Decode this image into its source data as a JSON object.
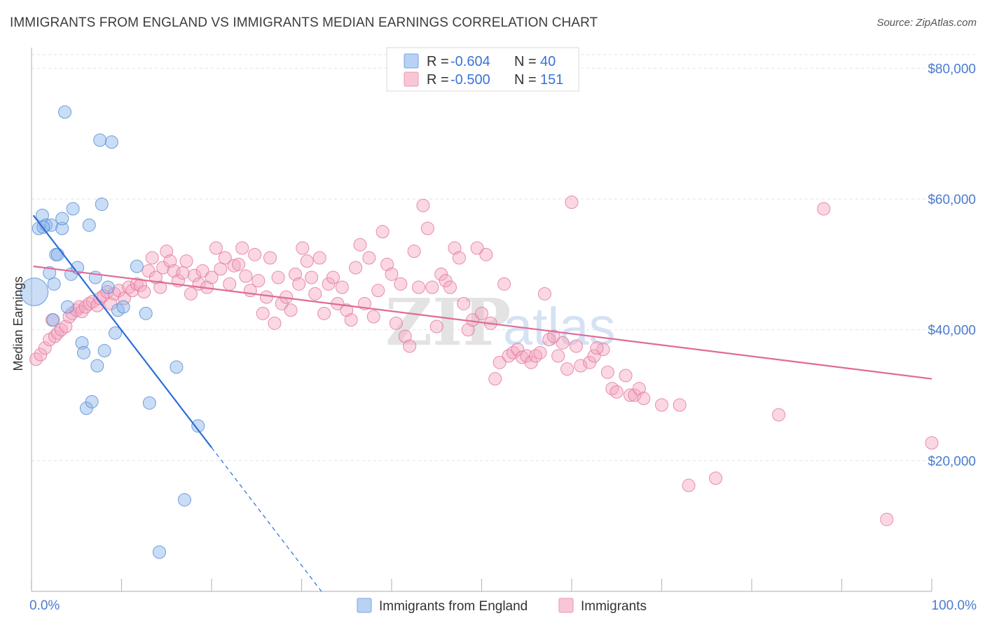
{
  "title": "IMMIGRANTS FROM ENGLAND VS IMMIGRANTS MEDIAN EARNINGS CORRELATION CHART",
  "source": "Source: ZipAtlas.com",
  "chart_data": {
    "type": "scatter",
    "ylabel": "Median Earnings",
    "xlim": [
      0,
      100
    ],
    "ylim": [
      0,
      84000
    ],
    "x_tick_labels": [
      "0.0%",
      "100.0%"
    ],
    "y_ticks": [
      20000,
      40000,
      60000,
      80000
    ],
    "y_tick_labels": [
      "$20,000",
      "$40,000",
      "$60,000",
      "$80,000"
    ],
    "watermark": [
      "ZIP",
      "atlas"
    ],
    "legend": [
      {
        "r_label": "R = ",
        "r_value": "-0.604",
        "n_label": "N = ",
        "n_value": "40"
      },
      {
        "r_label": "R = ",
        "r_value": "-0.500",
        "n_label": "N = ",
        "n_value": "151"
      }
    ],
    "series": [
      {
        "name": "Immigrants from England",
        "color": "#8ab4ec",
        "stroke": "#5b8fd6",
        "line_color": "#2b6fd6",
        "trend": {
          "x0": 0.2,
          "y0": 57500,
          "x1": 20,
          "y1": 22000,
          "dash_to_x": 32.2,
          "dash_to_y": 0
        },
        "points": [
          [
            0.3,
            45800,
            2.2
          ],
          [
            0.8,
            55500,
            1
          ],
          [
            1.2,
            57500,
            1
          ],
          [
            1.6,
            56000,
            1
          ],
          [
            2.2,
            56000,
            1
          ],
          [
            2.7,
            51500,
            1
          ],
          [
            2.4,
            41500,
            1
          ],
          [
            2.5,
            47000,
            1
          ],
          [
            2.9,
            51500,
            1
          ],
          [
            3.4,
            55500,
            1
          ],
          [
            3.4,
            57000,
            1
          ],
          [
            4.0,
            43500,
            1
          ],
          [
            4.4,
            48500,
            1
          ],
          [
            4.6,
            58500,
            1
          ],
          [
            5.1,
            49500,
            1
          ],
          [
            5.6,
            38000,
            1
          ],
          [
            5.8,
            36500,
            1
          ],
          [
            6.1,
            28000,
            1
          ],
          [
            6.4,
            56000,
            1
          ],
          [
            6.7,
            29000,
            1
          ],
          [
            7.1,
            48000,
            1
          ],
          [
            7.3,
            34500,
            1
          ],
          [
            7.6,
            69000,
            1
          ],
          [
            7.8,
            59200,
            1
          ],
          [
            8.1,
            36800,
            1
          ],
          [
            8.5,
            46500,
            1
          ],
          [
            8.9,
            68700,
            1
          ],
          [
            9.3,
            39500,
            1
          ],
          [
            9.6,
            43000,
            1
          ],
          [
            10.2,
            43500,
            1
          ],
          [
            11.7,
            49700,
            1
          ],
          [
            12.7,
            42500,
            1
          ],
          [
            13.1,
            28800,
            1
          ],
          [
            14.2,
            6000,
            1
          ],
          [
            16.1,
            34300,
            1
          ],
          [
            17.0,
            14000,
            1
          ],
          [
            18.5,
            25300,
            1
          ],
          [
            3.7,
            73300,
            1
          ],
          [
            1.3,
            55700,
            1
          ],
          [
            2.0,
            48700,
            1
          ]
        ]
      },
      {
        "name": "Immigrants",
        "color": "#f4a7c1",
        "stroke": "#e27ba0",
        "line_color": "#e06a98",
        "trend": {
          "x0": 0.2,
          "y0": 49700,
          "x1": 100,
          "y1": 32500
        },
        "points": [
          [
            0.5,
            35500,
            1
          ],
          [
            1.0,
            36200,
            1
          ],
          [
            1.5,
            37200,
            1
          ],
          [
            2.0,
            38500,
            1
          ],
          [
            2.3,
            41500,
            1
          ],
          [
            2.6,
            39000,
            1
          ],
          [
            2.9,
            39500,
            1
          ],
          [
            3.3,
            40000,
            1
          ],
          [
            3.8,
            40500,
            1
          ],
          [
            4.2,
            42000,
            1
          ],
          [
            4.5,
            42500,
            1
          ],
          [
            5.0,
            43000,
            1
          ],
          [
            5.3,
            43500,
            1
          ],
          [
            5.6,
            42800,
            1
          ],
          [
            6.0,
            43500,
            1
          ],
          [
            6.4,
            44000,
            1
          ],
          [
            6.8,
            44300,
            1
          ],
          [
            7.3,
            43700,
            1
          ],
          [
            7.6,
            44800,
            1
          ],
          [
            8.0,
            45200,
            1
          ],
          [
            8.4,
            45800,
            1
          ],
          [
            8.8,
            44000,
            1
          ],
          [
            9.2,
            45500,
            1
          ],
          [
            9.7,
            46000,
            1
          ],
          [
            10.3,
            44800,
            1
          ],
          [
            10.8,
            46500,
            1
          ],
          [
            11.2,
            46000,
            1
          ],
          [
            11.7,
            47000,
            1
          ],
          [
            12.1,
            46800,
            1
          ],
          [
            12.5,
            45800,
            1
          ],
          [
            13.0,
            49000,
            1
          ],
          [
            13.4,
            51000,
            1
          ],
          [
            13.8,
            48000,
            1
          ],
          [
            14.3,
            46500,
            1
          ],
          [
            14.6,
            49500,
            1
          ],
          [
            15.0,
            52000,
            1
          ],
          [
            15.4,
            50500,
            1
          ],
          [
            15.8,
            49000,
            1
          ],
          [
            16.3,
            47500,
            1
          ],
          [
            16.8,
            48700,
            1
          ],
          [
            17.2,
            50500,
            1
          ],
          [
            17.7,
            45500,
            1
          ],
          [
            18.1,
            48300,
            1
          ],
          [
            18.6,
            47000,
            1
          ],
          [
            19.0,
            49000,
            1
          ],
          [
            19.5,
            46500,
            1
          ],
          [
            20.0,
            48000,
            1
          ],
          [
            20.5,
            52500,
            1
          ],
          [
            21.0,
            49300,
            1
          ],
          [
            21.5,
            51000,
            1
          ],
          [
            22.0,
            47000,
            1
          ],
          [
            22.5,
            49800,
            1
          ],
          [
            23.0,
            50000,
            1
          ],
          [
            23.4,
            52500,
            1
          ],
          [
            23.8,
            48200,
            1
          ],
          [
            24.3,
            46000,
            1
          ],
          [
            24.8,
            51500,
            1
          ],
          [
            25.2,
            47500,
            1
          ],
          [
            25.7,
            42500,
            1
          ],
          [
            26.1,
            45000,
            1
          ],
          [
            26.5,
            51000,
            1
          ],
          [
            27.0,
            41000,
            1
          ],
          [
            27.4,
            48000,
            1
          ],
          [
            27.8,
            44000,
            1
          ],
          [
            28.3,
            45000,
            1
          ],
          [
            28.8,
            43000,
            1
          ],
          [
            29.3,
            48500,
            1
          ],
          [
            29.7,
            47000,
            1
          ],
          [
            30.1,
            52500,
            1
          ],
          [
            30.6,
            50500,
            1
          ],
          [
            31.1,
            48000,
            1
          ],
          [
            31.5,
            45500,
            1
          ],
          [
            32.0,
            51000,
            1
          ],
          [
            32.5,
            42500,
            1
          ],
          [
            33.0,
            47000,
            1
          ],
          [
            33.5,
            48000,
            1
          ],
          [
            34.0,
            44000,
            1
          ],
          [
            34.5,
            46500,
            1
          ],
          [
            35.0,
            43000,
            1
          ],
          [
            35.5,
            41500,
            1
          ],
          [
            36.0,
            49500,
            1
          ],
          [
            36.5,
            53000,
            1
          ],
          [
            37.0,
            44000,
            1
          ],
          [
            37.5,
            51000,
            1
          ],
          [
            38.0,
            42000,
            1
          ],
          [
            38.5,
            46000,
            1
          ],
          [
            39.0,
            55000,
            1
          ],
          [
            39.5,
            50000,
            1
          ],
          [
            40.0,
            48500,
            1
          ],
          [
            40.5,
            41000,
            1
          ],
          [
            41.0,
            47000,
            1
          ],
          [
            41.5,
            39000,
            1
          ],
          [
            42.0,
            37500,
            1
          ],
          [
            42.5,
            52000,
            1
          ],
          [
            43.0,
            46500,
            1
          ],
          [
            43.5,
            59000,
            1
          ],
          [
            44.0,
            55500,
            1
          ],
          [
            44.5,
            46500,
            1
          ],
          [
            45.0,
            40500,
            1
          ],
          [
            45.5,
            48500,
            1
          ],
          [
            46.0,
            47500,
            1
          ],
          [
            46.5,
            46500,
            1
          ],
          [
            47.0,
            52500,
            1
          ],
          [
            47.5,
            51000,
            1
          ],
          [
            48.0,
            44000,
            1
          ],
          [
            48.5,
            40000,
            1
          ],
          [
            49.0,
            41500,
            1
          ],
          [
            49.5,
            52500,
            1
          ],
          [
            50.0,
            42500,
            1
          ],
          [
            50.5,
            51500,
            1
          ],
          [
            51.0,
            41000,
            1
          ],
          [
            51.5,
            32500,
            1
          ],
          [
            52.0,
            35000,
            1
          ],
          [
            52.5,
            47000,
            1
          ],
          [
            53.0,
            36000,
            1
          ],
          [
            53.5,
            36500,
            1
          ],
          [
            54.0,
            37000,
            1
          ],
          [
            54.5,
            35800,
            1
          ],
          [
            55.0,
            36000,
            1
          ],
          [
            55.5,
            35000,
            1
          ],
          [
            56.0,
            36000,
            1
          ],
          [
            56.5,
            36500,
            1
          ],
          [
            57.0,
            45500,
            1
          ],
          [
            57.5,
            38500,
            1
          ],
          [
            58.0,
            39000,
            1
          ],
          [
            58.5,
            36000,
            1
          ],
          [
            59.0,
            38000,
            1
          ],
          [
            59.5,
            34000,
            1
          ],
          [
            60.0,
            59500,
            1
          ],
          [
            60.5,
            37500,
            1
          ],
          [
            61.0,
            34500,
            1
          ],
          [
            62.0,
            35000,
            1
          ],
          [
            62.5,
            36000,
            1
          ],
          [
            63.5,
            37000,
            1
          ],
          [
            64.0,
            33500,
            1
          ],
          [
            64.5,
            31000,
            1
          ],
          [
            65.0,
            30500,
            1
          ],
          [
            66.0,
            33000,
            1
          ],
          [
            66.5,
            30000,
            1
          ],
          [
            67.0,
            30000,
            1
          ],
          [
            67.5,
            31000,
            1
          ],
          [
            68.0,
            29500,
            1
          ],
          [
            70.0,
            28500,
            1
          ],
          [
            72.0,
            28500,
            1
          ],
          [
            73.0,
            16200,
            1
          ],
          [
            76.0,
            17300,
            1
          ],
          [
            83.0,
            27000,
            1
          ],
          [
            88.0,
            58500,
            1
          ],
          [
            95.0,
            11000,
            1
          ],
          [
            100.0,
            22700,
            1
          ],
          [
            62.8,
            37200,
            1
          ]
        ]
      }
    ]
  }
}
